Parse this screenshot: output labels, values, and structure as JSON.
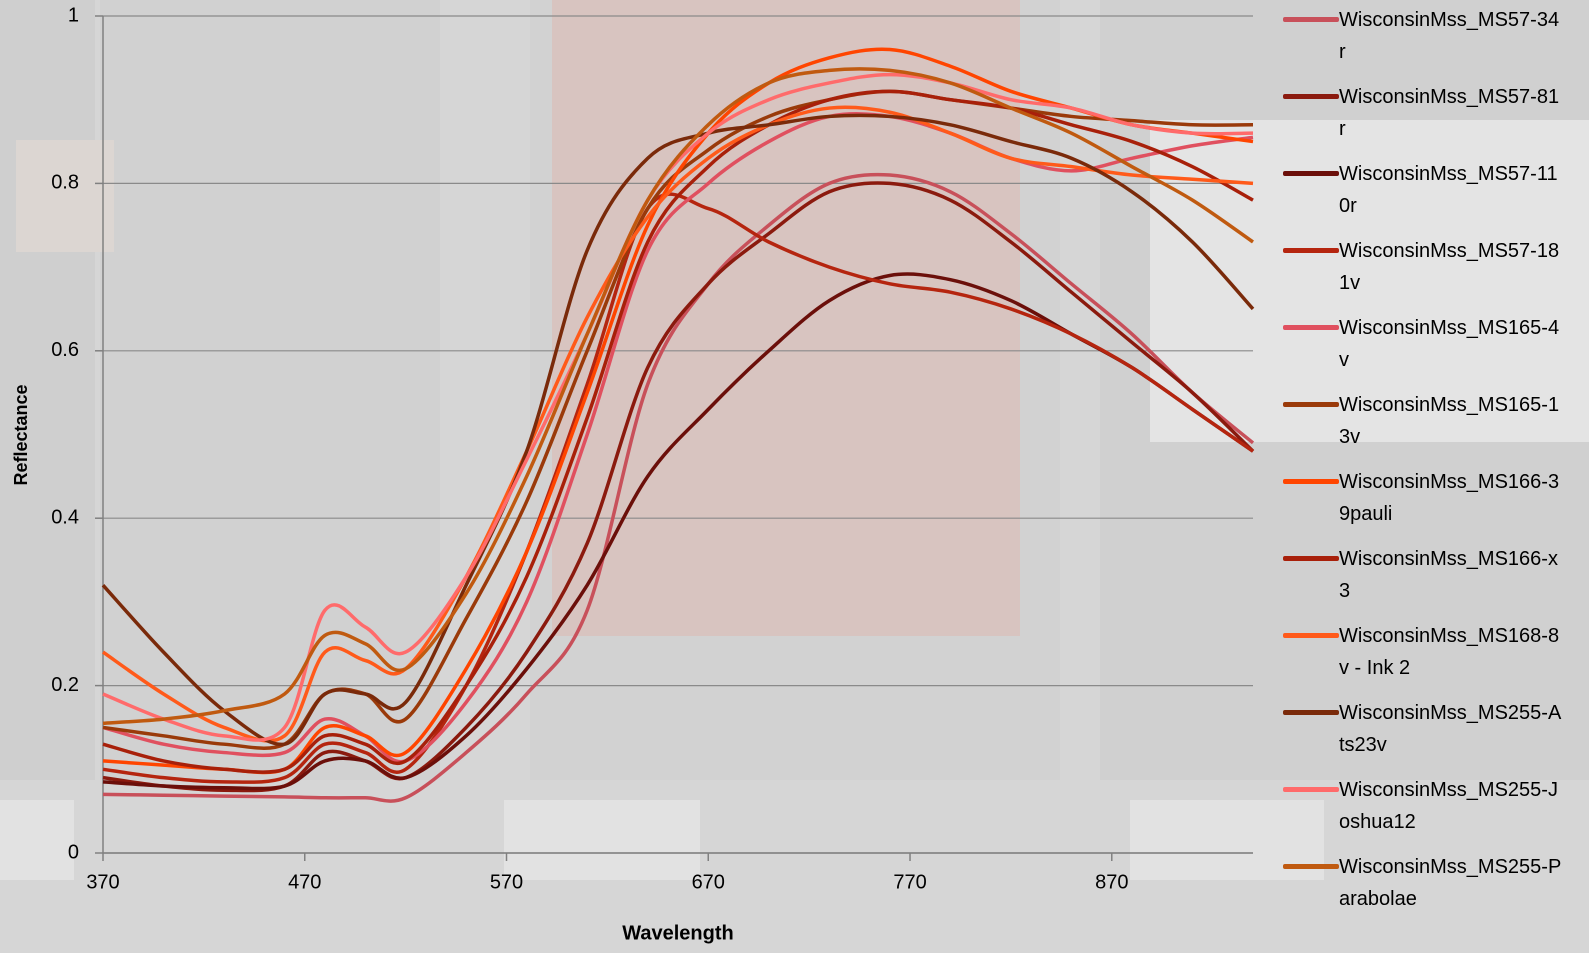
{
  "chart_data": {
    "type": "line",
    "x_label": "Wavelength",
    "y_label": "Reflectance",
    "x": [
      370,
      400,
      430,
      460,
      480,
      500,
      520,
      550,
      580,
      610,
      640,
      670,
      700,
      730,
      760,
      790,
      820,
      850,
      880,
      910,
      940
    ],
    "xlim": [
      370,
      940
    ],
    "xticks": [
      370,
      470,
      570,
      670,
      770,
      870
    ],
    "ylim": [
      0,
      1
    ],
    "yticks": [
      0,
      0.2,
      0.4,
      0.6,
      0.8,
      1
    ],
    "grid": true,
    "series": [
      {
        "name": "WisconsinMss_MS57-34r",
        "color": "#c8505a",
        "values": [
          0.07,
          0.069,
          0.068,
          0.067,
          0.066,
          0.066,
          0.066,
          0.12,
          0.19,
          0.29,
          0.56,
          0.68,
          0.75,
          0.8,
          0.81,
          0.79,
          0.74,
          0.68,
          0.62,
          0.55,
          0.49
        ]
      },
      {
        "name": "WisconsinMss_MS57-81r",
        "color": "#8b1a0e",
        "values": [
          0.09,
          0.08,
          0.075,
          0.08,
          0.12,
          0.11,
          0.09,
          0.15,
          0.24,
          0.37,
          0.58,
          0.68,
          0.74,
          0.79,
          0.8,
          0.78,
          0.73,
          0.67,
          0.61,
          0.55,
          0.48
        ]
      },
      {
        "name": "WisconsinMss_MS57-110r",
        "color": "#6b0f0a",
        "values": [
          0.085,
          0.08,
          0.078,
          0.08,
          0.11,
          0.11,
          0.09,
          0.14,
          0.22,
          0.32,
          0.45,
          0.53,
          0.6,
          0.66,
          0.69,
          0.685,
          0.66,
          0.62,
          0.58,
          0.53,
          0.48
        ]
      },
      {
        "name": "WisconsinMss_MS57-181v",
        "color": "#b5250f",
        "values": [
          0.1,
          0.09,
          0.085,
          0.09,
          0.13,
          0.12,
          0.1,
          0.2,
          0.36,
          0.56,
          0.77,
          0.77,
          0.73,
          0.7,
          0.68,
          0.67,
          0.65,
          0.62,
          0.58,
          0.53,
          0.48
        ]
      },
      {
        "name": "WisconsinMss_MS165-4v",
        "color": "#e0505f",
        "values": [
          0.15,
          0.13,
          0.12,
          0.12,
          0.16,
          0.14,
          0.11,
          0.18,
          0.3,
          0.5,
          0.72,
          0.8,
          0.85,
          0.88,
          0.88,
          0.86,
          0.83,
          0.815,
          0.83,
          0.845,
          0.855
        ]
      },
      {
        "name": "WisconsinMss_MS165-13v",
        "color": "#9a3a0a",
        "values": [
          0.15,
          0.14,
          0.13,
          0.13,
          0.19,
          0.19,
          0.16,
          0.28,
          0.42,
          0.6,
          0.77,
          0.84,
          0.88,
          0.9,
          0.91,
          0.9,
          0.89,
          0.88,
          0.875,
          0.87,
          0.87
        ]
      },
      {
        "name": "WisconsinMss_MS166-39pauli",
        "color": "#ff4500",
        "values": [
          0.11,
          0.105,
          0.1,
          0.1,
          0.15,
          0.14,
          0.12,
          0.22,
          0.36,
          0.55,
          0.75,
          0.86,
          0.92,
          0.95,
          0.96,
          0.94,
          0.91,
          0.89,
          0.87,
          0.86,
          0.85
        ]
      },
      {
        "name": "WisconsinMss_MS166-x3",
        "color": "#a8200a",
        "values": [
          0.13,
          0.11,
          0.1,
          0.1,
          0.14,
          0.13,
          0.11,
          0.2,
          0.33,
          0.52,
          0.73,
          0.82,
          0.87,
          0.9,
          0.91,
          0.9,
          0.89,
          0.87,
          0.85,
          0.82,
          0.78
        ]
      },
      {
        "name": "WisconsinMss_MS168-8v - Ink 2",
        "color": "#ff5a1a",
        "values": [
          0.24,
          0.19,
          0.15,
          0.14,
          0.24,
          0.23,
          0.22,
          0.33,
          0.48,
          0.64,
          0.76,
          0.83,
          0.87,
          0.89,
          0.885,
          0.86,
          0.83,
          0.82,
          0.81,
          0.805,
          0.8
        ]
      },
      {
        "name": "WisconsinMss_MS255-Ats23v",
        "color": "#7a2a0a",
        "values": [
          0.32,
          0.24,
          0.17,
          0.13,
          0.19,
          0.19,
          0.18,
          0.32,
          0.48,
          0.72,
          0.83,
          0.86,
          0.87,
          0.88,
          0.88,
          0.87,
          0.85,
          0.83,
          0.79,
          0.73,
          0.65
        ]
      },
      {
        "name": "WisconsinMss_MS255-Joshua12",
        "color": "#ff6b6b",
        "values": [
          0.19,
          0.16,
          0.14,
          0.15,
          0.29,
          0.27,
          0.24,
          0.33,
          0.47,
          0.62,
          0.78,
          0.86,
          0.9,
          0.92,
          0.93,
          0.92,
          0.9,
          0.89,
          0.87,
          0.86,
          0.86
        ]
      },
      {
        "name": "WisconsinMss_MS255-Parabolae",
        "color": "#c05a10",
        "values": [
          0.155,
          0.16,
          0.17,
          0.19,
          0.26,
          0.25,
          0.22,
          0.31,
          0.45,
          0.62,
          0.78,
          0.87,
          0.92,
          0.935,
          0.935,
          0.92,
          0.89,
          0.86,
          0.82,
          0.78,
          0.73
        ]
      }
    ]
  }
}
